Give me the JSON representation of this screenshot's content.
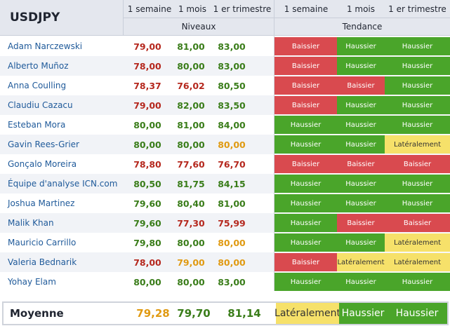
{
  "table": {
    "pair": "USDJPY",
    "columns": [
      "1 semaine",
      "1 mois",
      "1 er trimestre",
      "1 semaine",
      "1 mois",
      "1 er trimestre"
    ],
    "group_levels": "Niveaux",
    "group_trend": "Tendance",
    "rows": [
      {
        "name": "Adam Narczewski",
        "v": [
          "79,00",
          "81,00",
          "83,00"
        ],
        "c": [
          "red",
          "green",
          "green"
        ],
        "t": [
          "Baissier",
          "Haussier",
          "Haussier"
        ]
      },
      {
        "name": "Alberto Muñoz",
        "v": [
          "78,00",
          "80,00",
          "83,00"
        ],
        "c": [
          "red",
          "green",
          "green"
        ],
        "t": [
          "Baissier",
          "Haussier",
          "Haussier"
        ]
      },
      {
        "name": "Anna Coulling",
        "v": [
          "78,37",
          "76,02",
          "80,50"
        ],
        "c": [
          "red",
          "red",
          "green"
        ],
        "t": [
          "Baissier",
          "Baissier",
          "Haussier"
        ]
      },
      {
        "name": "Claudiu Cazacu",
        "v": [
          "79,00",
          "82,00",
          "83,50"
        ],
        "c": [
          "red",
          "green",
          "green"
        ],
        "t": [
          "Baissier",
          "Haussier",
          "Haussier"
        ]
      },
      {
        "name": "Esteban Mora",
        "v": [
          "80,00",
          "81,00",
          "84,00"
        ],
        "c": [
          "green",
          "green",
          "green"
        ],
        "t": [
          "Haussier",
          "Haussier",
          "Haussier"
        ]
      },
      {
        "name": "Gavin Rees-Grier",
        "v": [
          "80,00",
          "80,00",
          "80,00"
        ],
        "c": [
          "green",
          "green",
          "orange"
        ],
        "t": [
          "Haussier",
          "Haussier",
          "Latéralement"
        ]
      },
      {
        "name": "Gonçalo Moreira",
        "v": [
          "78,80",
          "77,60",
          "76,70"
        ],
        "c": [
          "red",
          "red",
          "red"
        ],
        "t": [
          "Baissier",
          "Baissier",
          "Baissier"
        ]
      },
      {
        "name": "Équipe d'analyse ICN.com",
        "v": [
          "80,50",
          "81,75",
          "84,15"
        ],
        "c": [
          "green",
          "green",
          "green"
        ],
        "t": [
          "Haussier",
          "Haussier",
          "Haussier"
        ]
      },
      {
        "name": "Joshua Martinez",
        "v": [
          "79,60",
          "80,40",
          "81,00"
        ],
        "c": [
          "green",
          "green",
          "green"
        ],
        "t": [
          "Haussier",
          "Haussier",
          "Haussier"
        ]
      },
      {
        "name": "Malik Khan",
        "v": [
          "79,60",
          "77,30",
          "75,99"
        ],
        "c": [
          "green",
          "red",
          "red"
        ],
        "t": [
          "Haussier",
          "Baissier",
          "Baissier"
        ]
      },
      {
        "name": "Mauricio Carrillo",
        "v": [
          "79,80",
          "80,00",
          "80,00"
        ],
        "c": [
          "green",
          "green",
          "orange"
        ],
        "t": [
          "Haussier",
          "Haussier",
          "Latéralement"
        ]
      },
      {
        "name": "Valeria Bednarik",
        "v": [
          "78,00",
          "79,00",
          "80,00"
        ],
        "c": [
          "red",
          "orange",
          "orange"
        ],
        "t": [
          "Baissier",
          "Latéralement",
          "Latéralement"
        ]
      },
      {
        "name": "Yohay Elam",
        "v": [
          "80,00",
          "80,00",
          "83,00"
        ],
        "c": [
          "green",
          "green",
          "green"
        ],
        "t": [
          "Haussier",
          "Haussier",
          "Haussier"
        ]
      }
    ],
    "average": {
      "label": "Moyenne",
      "v": [
        "79,28",
        "79,70",
        "81,14"
      ],
      "c": [
        "orange",
        "green",
        "green"
      ],
      "t": [
        "Latéralement",
        "Haussier",
        "Haussier"
      ]
    }
  }
}
